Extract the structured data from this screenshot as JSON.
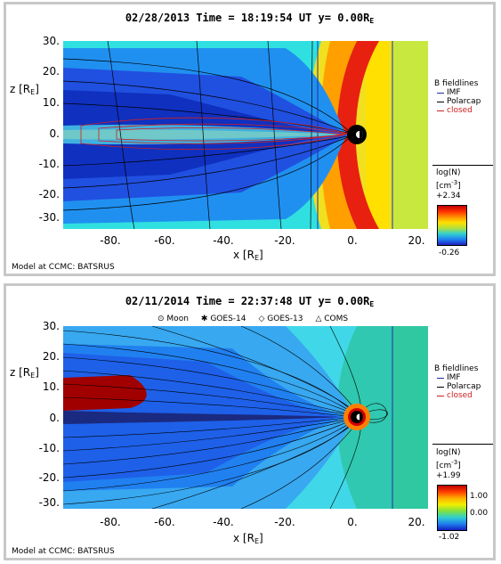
{
  "panel1": {
    "title": "02/28/2013 Time = 18:19:54 UT y= 0.00R",
    "title_sub": "E",
    "y_axis_label": "z [R",
    "y_axis_sub": "E",
    "y_axis_close": "]",
    "x_axis_label": "x [R",
    "x_axis_sub": "E",
    "x_axis_close": "]",
    "y_ticks": [
      "30.",
      "20.",
      "10.",
      "0.",
      "-10.",
      "-20.",
      "-30."
    ],
    "x_ticks": [
      "-80.",
      "-60.",
      "-40.",
      "-20.",
      "0.",
      "20."
    ],
    "model_text": "Model at CCMC: BATSRUS",
    "legend_title": "B fieldlines",
    "legend_items": [
      {
        "label": "IMF",
        "color": "#2030a0"
      },
      {
        "label": "Polarcap",
        "color": "#000000"
      },
      {
        "label": "closed",
        "color": "#d02020"
      }
    ],
    "cbar_title_1": "log(N)",
    "cbar_title_2": "[cm",
    "cbar_title_sup": "-3",
    "cbar_title_3": "]",
    "cbar_max": "+2.34",
    "cbar_min": "-0.26"
  },
  "panel2": {
    "title": "02/11/2014 Time = 22:37:48 UT y= 0.00R",
    "title_sub": "E",
    "markers": [
      {
        "symbol": "⊙",
        "label": "Moon"
      },
      {
        "symbol": "✱",
        "label": "GOES-14"
      },
      {
        "symbol": "◇",
        "label": "GOES-13"
      },
      {
        "symbol": "△",
        "label": "COMS"
      }
    ],
    "y_axis_label": "z [R",
    "y_axis_sub": "E",
    "y_axis_close": "]",
    "x_axis_label": "x [R",
    "x_axis_sub": "E",
    "x_axis_close": "]",
    "y_ticks": [
      "30.",
      "20.",
      "10.",
      "0.",
      "-10.",
      "-20.",
      "-30."
    ],
    "x_ticks": [
      "-80.",
      "-60.",
      "-40.",
      "-20.",
      "0.",
      "20."
    ],
    "model_text": "Model at CCMC: BATSRUS",
    "legend_title": "B fieldlines",
    "legend_items": [
      {
        "label": "IMF",
        "color": "#2030a0"
      },
      {
        "label": "Polarcap",
        "color": "#000000"
      },
      {
        "label": "closed",
        "color": "#d02020"
      }
    ],
    "cbar_title_1": "log(N)",
    "cbar_title_2": "[cm",
    "cbar_title_sup": "-3",
    "cbar_title_3": "]",
    "cbar_max": "+1.99",
    "cbar_mid1": "1.00",
    "cbar_mid2": "0.00",
    "cbar_min": "-1.02"
  }
}
